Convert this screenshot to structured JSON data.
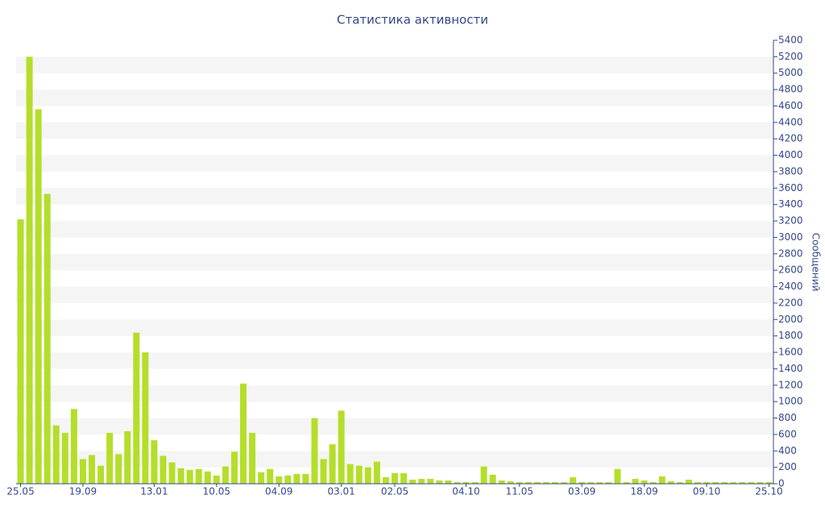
{
  "chart_data": {
    "type": "bar",
    "title": "Статистика активности",
    "y_label": "Сообщений",
    "categories": [
      "25.05",
      null,
      null,
      null,
      null,
      null,
      null,
      "19.09",
      null,
      null,
      null,
      null,
      null,
      null,
      null,
      "13.01",
      null,
      null,
      null,
      null,
      null,
      null,
      "10.05",
      null,
      null,
      null,
      null,
      null,
      null,
      "04.09",
      null,
      null,
      null,
      null,
      null,
      null,
      "03.01",
      null,
      null,
      null,
      null,
      null,
      "02.05",
      null,
      null,
      null,
      null,
      null,
      null,
      null,
      "04.10",
      null,
      null,
      null,
      null,
      null,
      "11.05",
      null,
      null,
      null,
      null,
      null,
      null,
      "03.09",
      null,
      null,
      null,
      null,
      null,
      null,
      "18.09",
      null,
      null,
      null,
      null,
      null,
      null,
      "09.10",
      null,
      null,
      null,
      null,
      null,
      null,
      "25.10"
    ],
    "values": [
      3220,
      5200,
      4560,
      3530,
      710,
      620,
      910,
      300,
      350,
      220,
      620,
      360,
      640,
      1840,
      1600,
      530,
      340,
      260,
      190,
      170,
      180,
      150,
      100,
      210,
      390,
      1220,
      620,
      140,
      180,
      90,
      100,
      120,
      120,
      800,
      300,
      480,
      890,
      240,
      220,
      200,
      270,
      80,
      130,
      130,
      50,
      60,
      60,
      40,
      40,
      20,
      20,
      20,
      210,
      110,
      40,
      30,
      20,
      20,
      20,
      20,
      20,
      20,
      80,
      20,
      20,
      20,
      20,
      180,
      20,
      60,
      40,
      20,
      90,
      30,
      20,
      50,
      20,
      20,
      20,
      20,
      20,
      20,
      20,
      20,
      20
    ],
    "color": "#b5de2b",
    "ylim": [
      0,
      5400
    ],
    "yticks": [
      0,
      200,
      400,
      600,
      800,
      1000,
      1200,
      1400,
      1600,
      1800,
      2000,
      2200,
      2400,
      2600,
      2800,
      3000,
      3200,
      3400,
      3600,
      3800,
      4000,
      4200,
      4400,
      4600,
      4800,
      5000,
      5200,
      5400
    ],
    "grid": true
  }
}
